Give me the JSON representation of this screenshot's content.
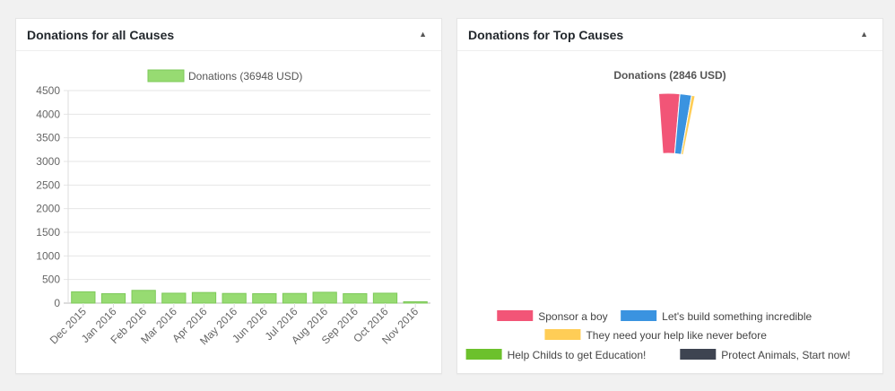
{
  "left_panel": {
    "title": "Donations for all Causes",
    "toggle_icon": "triangle-up-icon"
  },
  "right_panel": {
    "title": "Donations for Top Causes",
    "toggle_icon": "triangle-up-icon"
  },
  "chart_data": [
    {
      "type": "bar",
      "title": "",
      "xlabel": "",
      "ylabel": "",
      "ylim": [
        0,
        4500
      ],
      "yticks": [
        "0",
        "500",
        "1000",
        "1500",
        "2000",
        "2500",
        "3000",
        "3500",
        "4000",
        "4500"
      ],
      "ytick_values": [
        0,
        500,
        1000,
        1500,
        2000,
        2500,
        3000,
        3500,
        4000,
        4500
      ],
      "categories": [
        "Dec 2015",
        "Jan 2016",
        "Feb 2016",
        "Mar 2016",
        "Apr 2016",
        "May 2016",
        "Jun 2016",
        "Jul 2016",
        "Aug 2016",
        "Sep 2016",
        "Oct 2016",
        "Nov 2016"
      ],
      "series": [
        {
          "name": "Donations (36948 USD)",
          "color": "#97db72",
          "border": "#7ec95a",
          "values": [
            240,
            200,
            270,
            210,
            225,
            205,
            200,
            205,
            230,
            200,
            210,
            30
          ]
        }
      ],
      "grid": true,
      "legend_position": "top"
    },
    {
      "type": "pie",
      "title": "Donations (2846 USD)",
      "legend_position": "bottom",
      "slices": [
        {
          "label": "Sponsor a boy",
          "color": "#f25577"
        },
        {
          "label": "Let's build something incredible",
          "color": "#3a93e0"
        },
        {
          "label": "They need your help like never before",
          "color": "#ffcd56"
        },
        {
          "label": "Help Childs to get Education!",
          "color": "#6cc12c"
        },
        {
          "label": "Protect Animals, Start now!",
          "color": "#3e4451"
        }
      ]
    }
  ]
}
